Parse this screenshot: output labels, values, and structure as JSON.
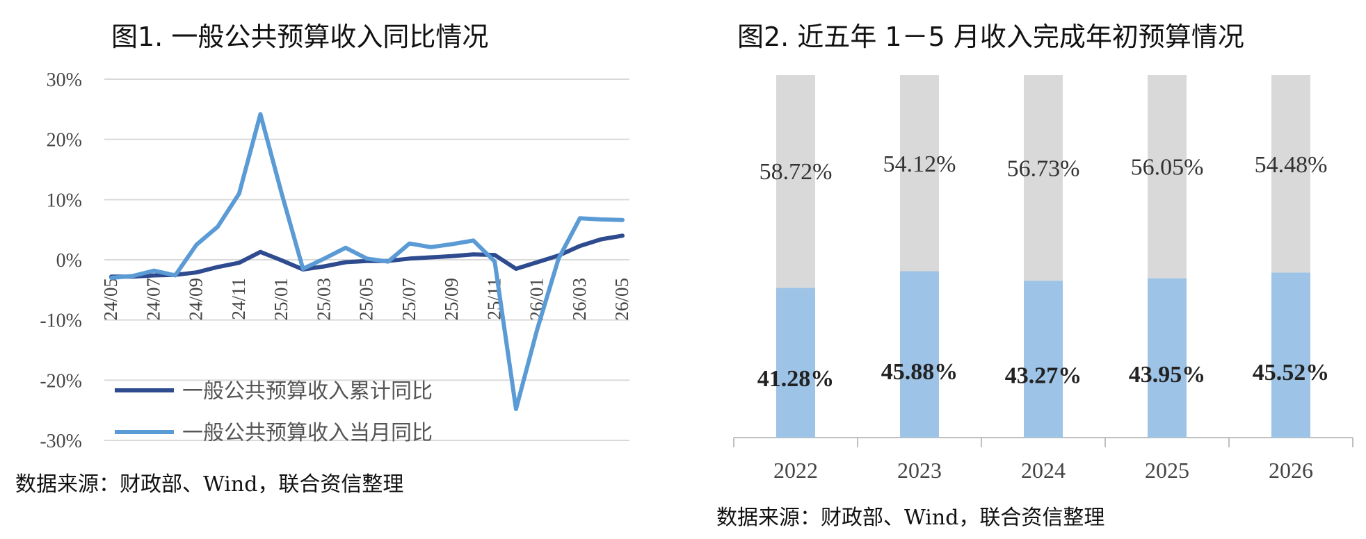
{
  "chart_data": [
    {
      "type": "line",
      "title": "图1. 一般公共预算收入同比情况",
      "source": "数据来源：财政部、Wind，联合资信整理",
      "ylim": [
        -30,
        30
      ],
      "yticks": [
        30,
        20,
        10,
        0,
        -10,
        -20,
        -30
      ],
      "ytick_labels": [
        "30%",
        "20%",
        "10%",
        "0%",
        "-10%",
        "-20%",
        "-30%"
      ],
      "x": [
        "24/05",
        "24/06",
        "24/07",
        "24/08",
        "24/09",
        "24/10",
        "24/11",
        "24/12",
        "25/01",
        "25/02",
        "25/03",
        "25/04",
        "25/05",
        "25/06",
        "25/07",
        "25/08",
        "25/09",
        "25/10",
        "25/11",
        "25/12",
        "26/01",
        "26/02",
        "26/03",
        "26/04",
        "26/05"
      ],
      "xtick_labels": [
        "24/05",
        "24/07",
        "24/09",
        "24/11",
        "25/01",
        "25/03",
        "25/05",
        "25/07",
        "25/09",
        "25/11",
        "26/01",
        "26/03",
        "26/05"
      ],
      "series": [
        {
          "name": "一般公共预算收入累计同比",
          "color": "#2E4B8F",
          "values": [
            -2.8,
            -2.8,
            -2.6,
            -2.5,
            -2.1,
            -1.2,
            -0.5,
            1.3,
            -0.1,
            -1.6,
            -1.1,
            -0.4,
            -0.2,
            -0.2,
            0.2,
            0.4,
            0.6,
            0.9,
            0.8,
            -1.5,
            -0.4,
            0.7,
            2.3,
            3.4,
            4.0
          ]
        },
        {
          "name": "一般公共预算收入当月同比",
          "color": "#5B9BD5",
          "values": [
            -3.0,
            -2.7,
            -1.8,
            -2.6,
            2.5,
            5.5,
            11.0,
            24.2,
            11.0,
            -1.5,
            0.2,
            2.0,
            0.2,
            -0.3,
            2.7,
            2.1,
            2.6,
            3.2,
            -0.3,
            -24.8,
            -11.5,
            0.2,
            6.9,
            6.7,
            6.6
          ]
        }
      ]
    },
    {
      "type": "bar",
      "stacked": true,
      "title": "图2. 近五年 1－5 月收入完成年初预算情况",
      "source": "数据来源：财政部、Wind，联合资信整理",
      "categories": [
        "2022",
        "2023",
        "2024",
        "2025",
        "2026"
      ],
      "ylim": [
        0,
        100
      ],
      "series": [
        {
          "color": "#9DC3E6",
          "values": [
            41.28,
            45.88,
            43.27,
            43.95,
            45.52
          ],
          "labels": [
            "41.28%",
            "45.88%",
            "43.27%",
            "43.95%",
            "45.52%"
          ]
        },
        {
          "color": "#D9D9D9",
          "values": [
            58.72,
            54.12,
            56.73,
            56.05,
            54.48
          ],
          "labels": [
            "58.72%",
            "54.12%",
            "56.73%",
            "56.05%",
            "54.48%"
          ]
        }
      ]
    }
  ]
}
